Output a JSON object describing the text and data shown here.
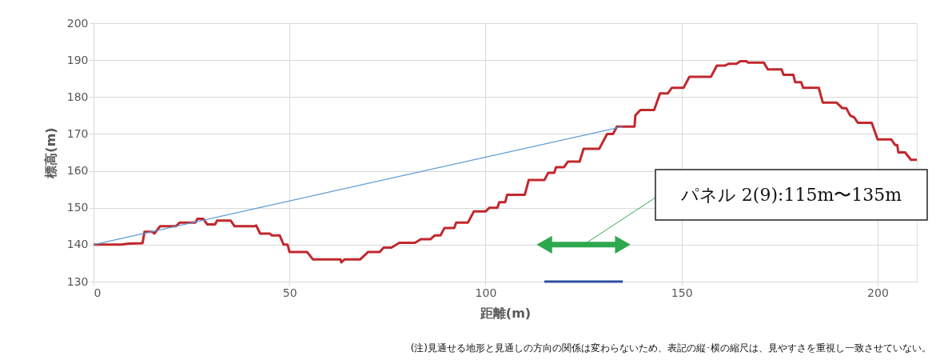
{
  "chart_data": {
    "type": "line",
    "xlabel": "距離(m)",
    "ylabel": "標高(m)",
    "xlim": [
      0,
      210
    ],
    "ylim": [
      130,
      200
    ],
    "xticks": [
      0,
      50,
      100,
      150,
      200
    ],
    "yticks": [
      130,
      140,
      150,
      160,
      170,
      180,
      190,
      200
    ],
    "grid": true,
    "line_style": "solid",
    "series": [
      {
        "color": "#c0282d",
        "x": [
          0,
          7,
          9,
          12.5,
          13,
          15,
          15.5,
          17,
          21,
          22,
          26,
          26.5,
          28,
          29,
          31,
          31.5,
          35,
          36,
          41,
          41.5,
          42.5,
          45,
          45.5,
          47.5,
          48.5,
          49.5,
          50,
          54.5,
          56,
          63,
          63.2,
          64,
          68,
          70,
          73,
          74,
          76,
          78,
          82,
          83.5,
          86,
          87,
          88.5,
          89.5,
          92,
          92.5,
          95.5,
          97,
          100,
          101,
          103,
          103.5,
          105,
          105.5,
          110,
          111,
          115,
          116,
          117.5,
          118,
          120,
          121,
          124,
          125,
          129,
          131,
          132.5,
          133.5,
          138,
          138.2,
          139.5,
          143,
          144.5,
          146.5,
          147.5,
          150.5,
          152,
          157.5,
          159,
          161,
          162,
          164,
          165,
          166.5,
          167,
          171,
          172,
          175.5,
          176,
          178.5,
          179,
          180.5,
          181,
          185,
          186,
          189.5,
          191,
          192,
          193,
          194,
          195,
          198.5,
          200,
          203.5,
          204.5,
          205,
          205.3,
          207,
          208.5,
          210
        ],
        "values": [
          140,
          140,
          140.3,
          140.4,
          143.5,
          143.5,
          143,
          145,
          145,
          146,
          146,
          147,
          147,
          145.5,
          145.5,
          146.5,
          146.5,
          145,
          145,
          145.2,
          143,
          143,
          142.5,
          142.5,
          140,
          140,
          138,
          138,
          136,
          136,
          135.2,
          136,
          136,
          138,
          138,
          139.2,
          139.2,
          140.5,
          140.5,
          141.5,
          141.5,
          142.5,
          142.5,
          144.5,
          144.5,
          146,
          146,
          149,
          149,
          150,
          150,
          151.5,
          151.5,
          153.5,
          153.5,
          157.5,
          157.5,
          159.5,
          159.5,
          161,
          161,
          162.5,
          162.5,
          166,
          166,
          170,
          170,
          172,
          172,
          175,
          176.5,
          176.5,
          181,
          181,
          182.5,
          182.5,
          185.5,
          185.5,
          188.5,
          188.5,
          189,
          189,
          189.7,
          189.7,
          189.3,
          189.3,
          187.5,
          187.5,
          186,
          186,
          184,
          184,
          182.5,
          182.5,
          178.5,
          178.5,
          177,
          177,
          175,
          174.5,
          173,
          173,
          168.5,
          168.5,
          167,
          167,
          165,
          165,
          163,
          163
        ]
      },
      {
        "color": "#5b9bd5",
        "x": [
          0,
          135
        ],
        "values": [
          140,
          172
        ]
      },
      {
        "color": "#2f4fa2",
        "x": [
          115,
          135
        ],
        "values": [
          130,
          130
        ]
      },
      {
        "color": "#2ea84f",
        "x": [
          115,
          135
        ],
        "values": [
          140,
          140
        ],
        "marker": "triangle"
      }
    ],
    "annotations": [
      "パネル 2(9):115m〜135m",
      "(注)見通せる地形と見通しの方向の関係は変わらないため、表記の縦･横の縮尺は、見やすさを重視し一致させていない。"
    ]
  }
}
